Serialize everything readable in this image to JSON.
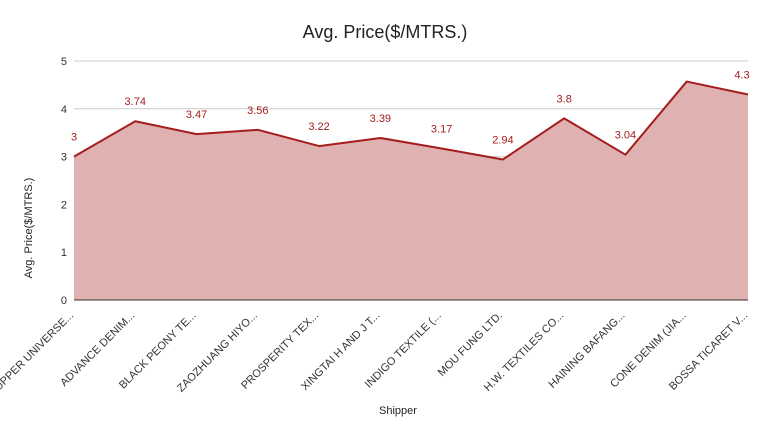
{
  "chart_data": {
    "type": "area",
    "title": "Avg. Price($/MTRS.)",
    "xlabel": "Shipper",
    "ylabel": "Avg. Price($/MTRS.)",
    "ylim": [
      0,
      5
    ],
    "yticks": [
      0,
      1,
      2,
      3,
      4,
      5
    ],
    "grid": true,
    "legend": "none",
    "categories": [
      "UPPER UNIVERSE...",
      "ADVANCE DENIM...",
      "BLACK PEONY TE...",
      "ZAOZHUANG HIYO...",
      "PROSPERITY TEX...",
      "XINGTAI H AND J T...",
      "INDIGO TEXTILE (...",
      "MOU FUNG LTD.",
      "H.W. TEXTILES CO...",
      "HAINING BAFANG...",
      "CONE DENIM (JIA...",
      "BOSSA TICARET V..."
    ],
    "series": [
      {
        "values": [
          3,
          3.74,
          3.47,
          3.56,
          3.22,
          3.39,
          3.17,
          2.94,
          3.8,
          3.04,
          4.57,
          4.3
        ],
        "data_labels": [
          "3",
          "3.74",
          "3.47",
          "3.56",
          "3.22",
          "3.39",
          "3.17",
          "2.94",
          "3.8",
          "3.04",
          "",
          "4.3"
        ]
      }
    ],
    "colors": {
      "line": "#a51c1c",
      "fill": "#dfb1b1",
      "label": "#a51c1c",
      "grid": "#cccccc",
      "baseline": "#333333"
    }
  }
}
